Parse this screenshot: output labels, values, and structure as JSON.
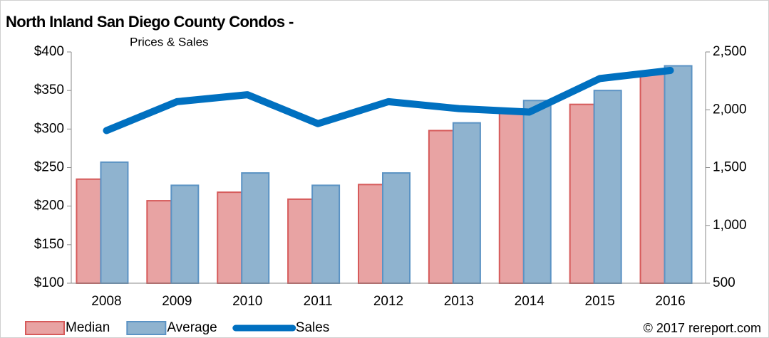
{
  "chart_data": {
    "type": "bar",
    "title": "North Inland San Diego County Condos -",
    "subtitle": "Prices & Sales",
    "categories": [
      "2008",
      "2009",
      "2010",
      "2011",
      "2012",
      "2013",
      "2014",
      "2015",
      "2016"
    ],
    "series": [
      {
        "name": "Median",
        "color": "#e8a3a3",
        "stroke": "#d65a5a",
        "type": "bar",
        "values": [
          235,
          207,
          218,
          209,
          228,
          298,
          322,
          332,
          375
        ]
      },
      {
        "name": "Average",
        "color": "#8fb3cf",
        "stroke": "#5b93c4",
        "type": "bar",
        "values": [
          257,
          227,
          243,
          227,
          243,
          308,
          337,
          350,
          382
        ]
      },
      {
        "name": "Sales",
        "color": "#0070c0",
        "type": "line",
        "axis": "y2",
        "values": [
          1820,
          2070,
          2130,
          1880,
          2070,
          2010,
          1980,
          2270,
          2340
        ]
      }
    ],
    "ylim": [
      100,
      400
    ],
    "yticks": [
      {
        "value": 100,
        "label": "$100"
      },
      {
        "value": 150,
        "label": "$150"
      },
      {
        "value": 200,
        "label": "$200"
      },
      {
        "value": 250,
        "label": "$250"
      },
      {
        "value": 300,
        "label": "$300"
      },
      {
        "value": 350,
        "label": "$350"
      },
      {
        "value": 400,
        "label": "$400"
      }
    ],
    "y2lim": [
      500,
      2500
    ],
    "y2ticks": [
      500,
      {
        "value": 1000,
        "label": "1,000"
      },
      {
        "value": 1500,
        "label": "1,500"
      },
      {
        "value": 2000,
        "label": "2,000"
      },
      {
        "value": 2500,
        "label": "2,500"
      }
    ],
    "legend": "bottom-left",
    "annotation": "© 2017 rereport.com"
  }
}
